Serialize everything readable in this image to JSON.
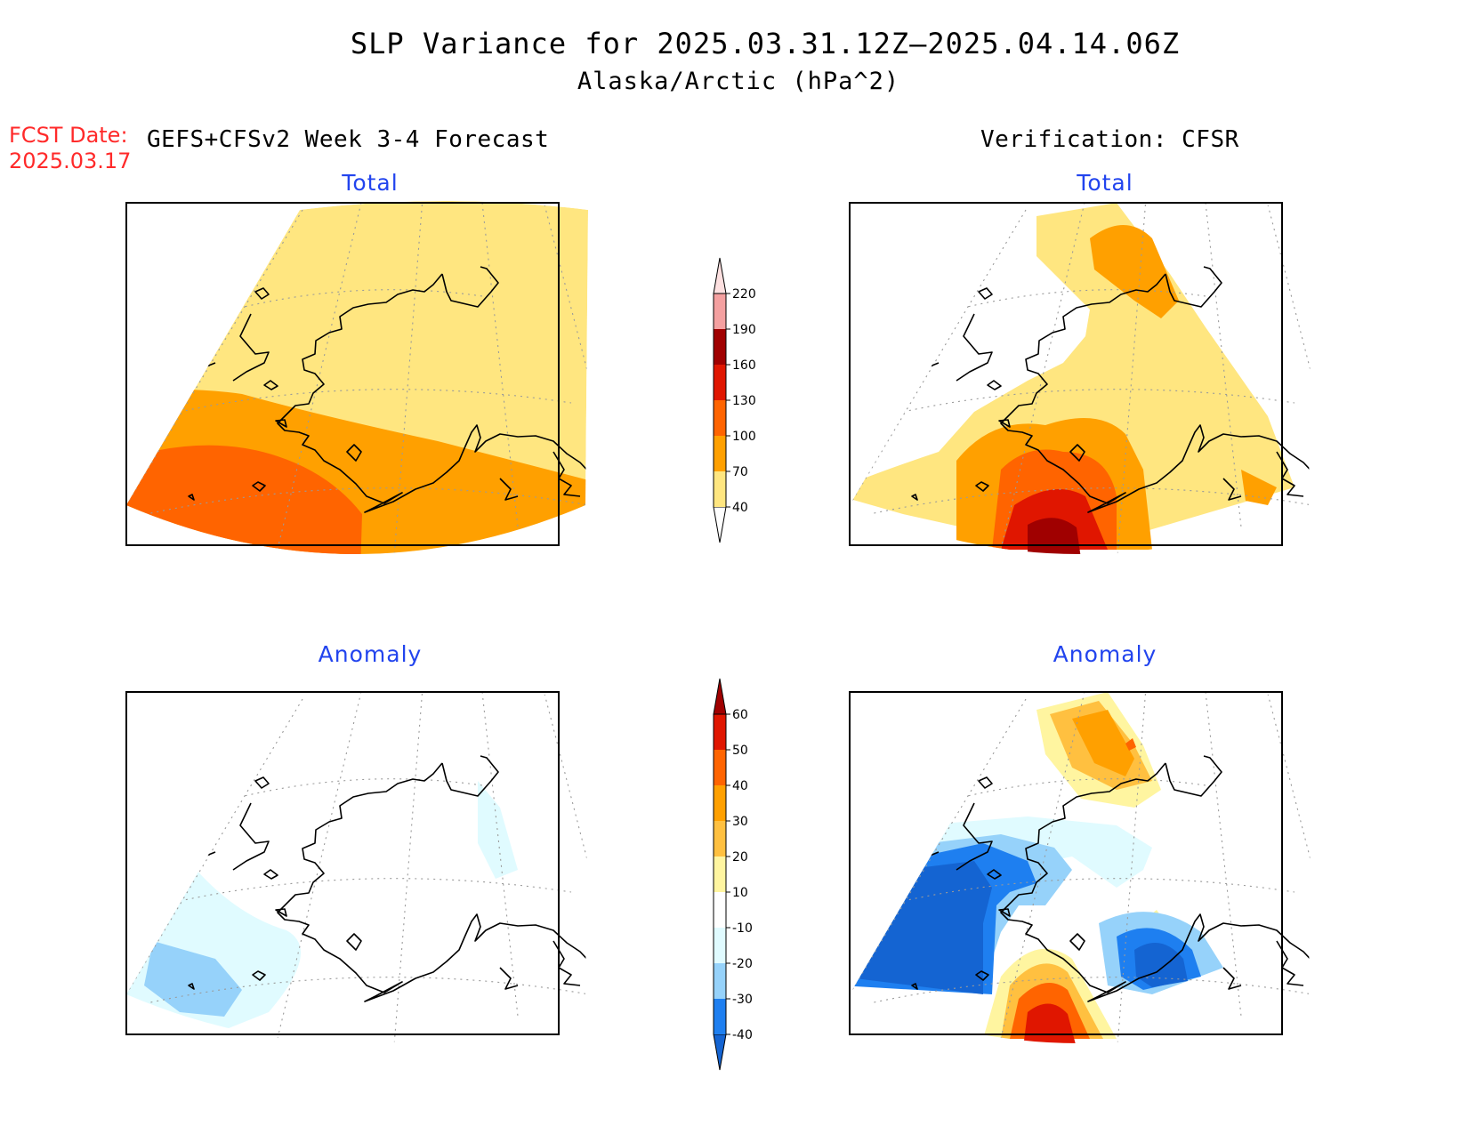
{
  "title": {
    "line1": "SLP Variance for 2025.03.31.12Z–2025.04.14.06Z",
    "line2": "Alaska/Arctic (hPa^2)"
  },
  "forecast": {
    "date_label": "FCST Date:",
    "date_value": "2025.03.17",
    "model_label": "GEFS+CFSv2 Week 3-4 Forecast"
  },
  "verification": {
    "label": "Verification: CFSR"
  },
  "panels": {
    "fcst_total": {
      "title": "Total"
    },
    "verif_total": {
      "title": "Total"
    },
    "fcst_anom": {
      "title": "Anomaly"
    },
    "verif_anom": {
      "title": "Anomaly"
    }
  },
  "colorbars": {
    "total": {
      "labels": [
        "40",
        "70",
        "100",
        "130",
        "160",
        "190",
        "220"
      ],
      "colors": [
        "#ffe680",
        "#ffa000",
        "#ff6400",
        "#e01600",
        "#a00000",
        "#f4a0a0",
        "#fde0e0"
      ]
    },
    "anomaly": {
      "labels": [
        "-40",
        "-30",
        "-20",
        "-10",
        "10",
        "20",
        "30",
        "40",
        "50",
        "60"
      ],
      "colors": [
        "#1464d2",
        "#1e7ff0",
        "#96d2fa",
        "#e0fbff",
        "#ffffff",
        "#fff5a0",
        "#ffc040",
        "#ffa000",
        "#ff6400",
        "#e01600",
        "#a00000"
      ]
    }
  }
}
